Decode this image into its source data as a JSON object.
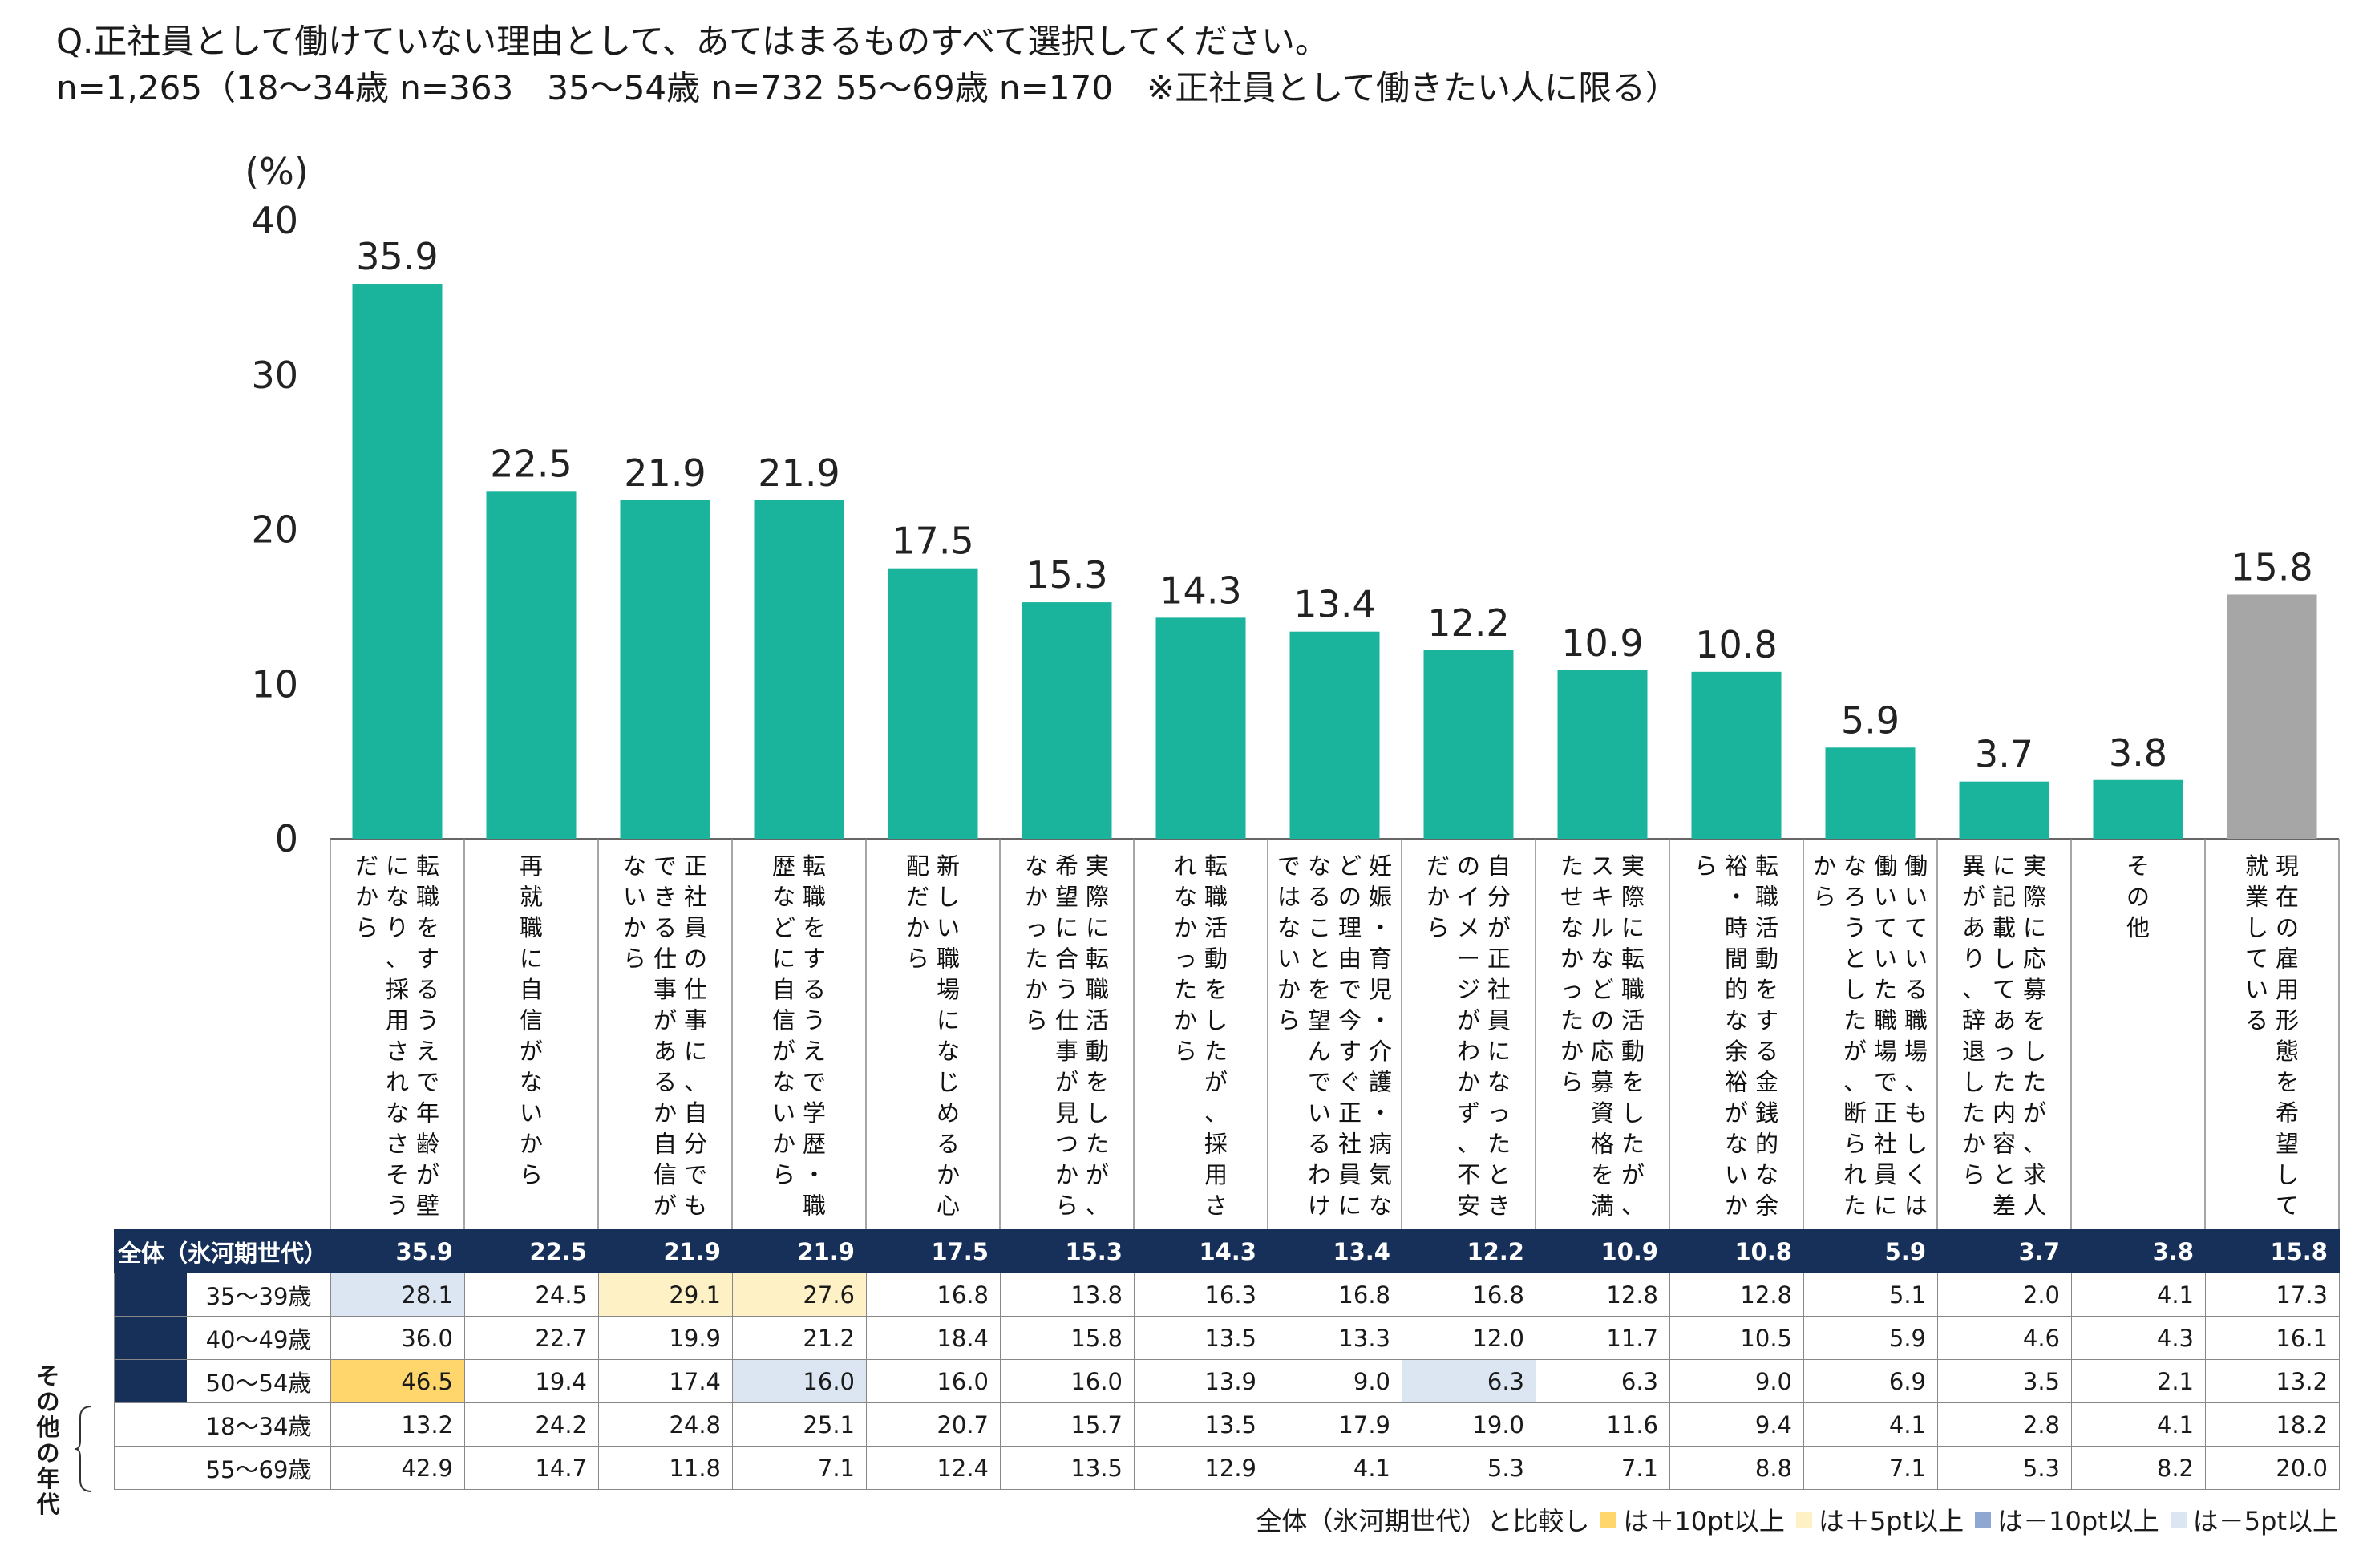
{
  "title_line1": "Q.正社員として働けていない理由として、あてはまるものすべて選択してください。",
  "title_line2": "n=1,265（18〜34歳 n=363　35〜54歳 n=732 55〜69歳 n=170　※正社員として働きたい人に限る）",
  "chart_data": {
    "type": "bar",
    "ylabel": "(%)",
    "ylim": [
      0,
      40
    ],
    "yticks": [
      0,
      10,
      20,
      30,
      40
    ],
    "categories": [
      "転職をするうえで年齢が壁になり、採用されなさそうだから",
      "再就職に自信がないから",
      "正社員の仕事に、自分でもできる仕事があるか自信がないから",
      "転職をするうえで学歴・職歴などに自信がないから",
      "新しい職場になじめるか心配だから",
      "実際に転職活動をしたが、希望に合う仕事が見つからなかったから",
      "転職活動をしたが、採用されなかったから",
      "妊娠・育児・介護・病気などの理由で今すぐ正社員になることを望んでいるわけではないから",
      "自分が正社員になったときのイメージがわかず、不安だから",
      "実際に転職活動をしたが、スキルなどの応募資格を満たせなかったから",
      "転職活動をする金銭的な余裕・時間的な余裕がないから",
      "働いている職場、もしくは働いていた職場で正社員になろうとしたが、断られたから",
      "実際に応募をしたが、求人に記載してあった内容と差異があり、辞退したから",
      "その他",
      "現在の雇用形態を希望して就業している"
    ],
    "series": [
      {
        "name": "全体（氷河期世代）",
        "values": [
          35.9,
          22.5,
          21.9,
          21.9,
          17.5,
          15.3,
          14.3,
          13.4,
          12.2,
          10.9,
          10.8,
          5.9,
          3.7,
          3.8,
          15.8
        ],
        "labels": [
          "35.9",
          "22.5",
          "21.9",
          "21.9",
          "17.5",
          "15.3",
          "14.3",
          "13.4",
          "12.2",
          "10.9",
          "10.8",
          "5.9",
          "3.7",
          "3.8",
          "15.8"
        ]
      }
    ],
    "colors": {
      "main": "#1ab39c",
      "last": "#a6a6a6"
    }
  },
  "table": {
    "total": {
      "label": "全体（氷河期世代）",
      "values": [
        "35.9",
        "22.5",
        "21.9",
        "21.9",
        "17.5",
        "15.3",
        "14.3",
        "13.4",
        "12.2",
        "10.9",
        "10.8",
        "5.9",
        "3.7",
        "3.8",
        "15.8"
      ]
    },
    "rows": [
      {
        "label": "35〜39歳",
        "values": [
          "28.1",
          "24.5",
          "29.1",
          "27.6",
          "16.8",
          "13.8",
          "16.3",
          "16.8",
          "16.8",
          "12.8",
          "12.8",
          "5.1",
          "2.0",
          "4.1",
          "17.3"
        ],
        "highlights": [
          "m5",
          "",
          "p5",
          "p5",
          "",
          "",
          "",
          "",
          "",
          "",
          "",
          "",
          "",
          "",
          ""
        ]
      },
      {
        "label": "40〜49歳",
        "values": [
          "36.0",
          "22.7",
          "19.9",
          "21.2",
          "18.4",
          "15.8",
          "13.5",
          "13.3",
          "12.0",
          "11.7",
          "10.5",
          "5.9",
          "4.6",
          "4.3",
          "16.1"
        ],
        "highlights": [
          "",
          "",
          "",
          "",
          "",
          "",
          "",
          "",
          "",
          "",
          "",
          "",
          "",
          "",
          ""
        ]
      },
      {
        "label": "50〜54歳",
        "values": [
          "46.5",
          "19.4",
          "17.4",
          "16.0",
          "16.0",
          "16.0",
          "13.9",
          "9.0",
          "6.3",
          "6.3",
          "9.0",
          "6.9",
          "3.5",
          "2.1",
          "13.2"
        ],
        "highlights": [
          "p10",
          "",
          "",
          "m5",
          "",
          "",
          "",
          "",
          "m5",
          "",
          "",
          "",
          "",
          "",
          ""
        ]
      }
    ],
    "other_rows": [
      {
        "label": "18〜34歳",
        "values": [
          "13.2",
          "24.2",
          "24.8",
          "25.1",
          "20.7",
          "15.7",
          "13.5",
          "17.9",
          "19.0",
          "11.6",
          "9.4",
          "4.1",
          "2.8",
          "4.1",
          "18.2"
        ]
      },
      {
        "label": "55〜69歳",
        "values": [
          "42.9",
          "14.7",
          "11.8",
          "7.1",
          "12.4",
          "13.5",
          "12.9",
          "4.1",
          "5.3",
          "7.1",
          "8.8",
          "7.1",
          "5.3",
          "8.2",
          "20.0"
        ]
      }
    ],
    "other_label": "その他の年代"
  },
  "legend": {
    "prefix": "全体（氷河期世代）と比較し",
    "items": [
      {
        "label": "は＋10pt以上",
        "color": "#ffd66b"
      },
      {
        "label": "は＋5pt以上",
        "color": "#fff1c6"
      },
      {
        "label": "は－10pt以上",
        "color": "#8fa8d2"
      },
      {
        "label": "は－5pt以上",
        "color": "#dce6f3"
      }
    ]
  }
}
